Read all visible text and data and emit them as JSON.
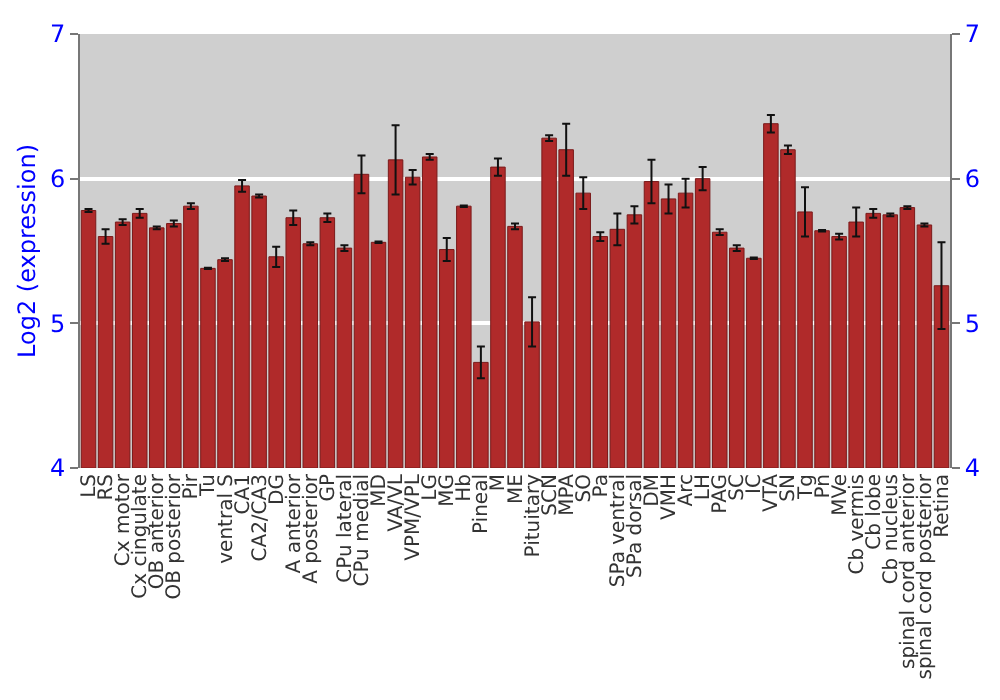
{
  "chart_data": {
    "type": "bar",
    "ylabel": "Log2 (expression)",
    "categories": [
      "LS",
      "RS",
      "Cx motor",
      "Cx cingulate",
      "OB anterior",
      "OB posterior",
      "Pir",
      "Tu",
      "ventral S",
      "CA1",
      "CA2/CA3",
      "DG",
      "A anterior",
      "A posterior",
      "GP",
      "CPu lateral",
      "CPu medial",
      "MD",
      "VA/VL",
      "VPM/VPL",
      "LG",
      "MG",
      "Hb",
      "Pineal",
      "M",
      "ME",
      "Pituitary",
      "SCN",
      "MPA",
      "SO",
      "Pa",
      "SPa ventral",
      "SPa dorsal",
      "DM",
      "VMH",
      "Arc",
      "LH",
      "PAG",
      "SC",
      "IC",
      "VTA",
      "SN",
      "Tg",
      "Pn",
      "MVe",
      "Cb vermis",
      "Cb lobe",
      "Cb nucleus",
      "spinal cord anterior",
      "spinal cord posterior",
      "Retina"
    ],
    "values": [
      5.78,
      5.6,
      5.7,
      5.76,
      5.66,
      5.69,
      5.81,
      5.38,
      5.44,
      5.95,
      5.88,
      5.46,
      5.73,
      5.55,
      5.73,
      5.52,
      6.03,
      5.56,
      6.13,
      6.01,
      6.15,
      5.51,
      5.81,
      4.73,
      6.08,
      5.67,
      5.01,
      6.28,
      6.2,
      5.9,
      5.6,
      5.65,
      5.75,
      5.98,
      5.86,
      5.9,
      6.0,
      5.63,
      5.52,
      5.45,
      6.38,
      6.2,
      5.77,
      5.64,
      5.6,
      5.7,
      5.76,
      5.75,
      5.8,
      5.68,
      5.26
    ],
    "errors": [
      0.01,
      0.05,
      0.02,
      0.03,
      0.01,
      0.02,
      0.02,
      0.005,
      0.01,
      0.04,
      0.01,
      0.07,
      0.05,
      0.01,
      0.03,
      0.02,
      0.13,
      0.005,
      0.24,
      0.05,
      0.02,
      0.08,
      0.005,
      0.11,
      0.06,
      0.02,
      0.17,
      0.02,
      0.18,
      0.11,
      0.03,
      0.11,
      0.06,
      0.15,
      0.1,
      0.1,
      0.08,
      0.02,
      0.02,
      0.005,
      0.06,
      0.03,
      0.17,
      0.005,
      0.02,
      0.1,
      0.03,
      0.01,
      0.01,
      0.01,
      0.3
    ],
    "color": "#b02a2a",
    "ylim": [
      4,
      7
    ],
    "yticks": [
      4,
      5,
      6,
      7
    ],
    "y2lim": [
      4,
      7
    ],
    "y2ticks": [
      4,
      5,
      6,
      7
    ],
    "grid": "y"
  }
}
